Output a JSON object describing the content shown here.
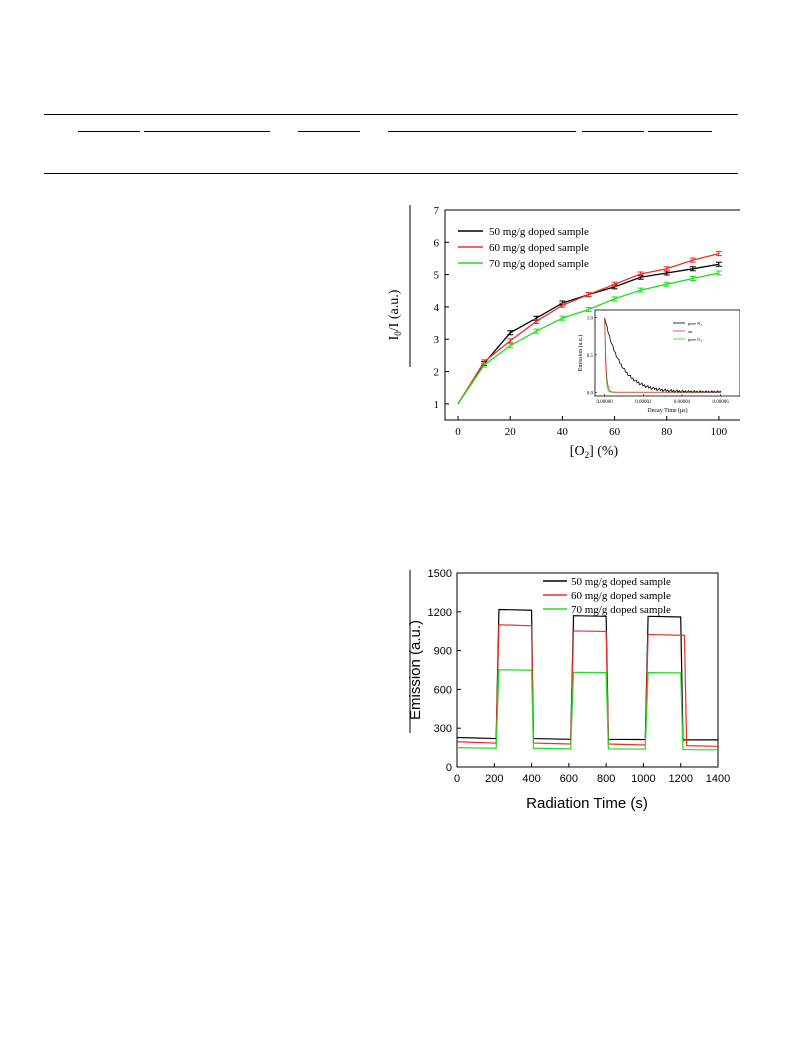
{
  "chart_data": [
    {
      "type": "line",
      "title": "",
      "xlabel": "[O₂] (%)",
      "ylabel": "I₀/I (a.u.)",
      "xlim": [
        -5,
        110
      ],
      "ylim": [
        0.5,
        7
      ],
      "xticks": [
        0,
        20,
        40,
        60,
        80,
        100
      ],
      "yticks": [
        1,
        2,
        3,
        4,
        5,
        6,
        7
      ],
      "legend_position": "top-left",
      "error_bars": true,
      "x": [
        0,
        10,
        20,
        30,
        40,
        50,
        60,
        70,
        80,
        90,
        100
      ],
      "series": [
        {
          "name": "50 mg/g doped sample",
          "color": "#000000",
          "values": [
            1.0,
            2.25,
            3.2,
            3.65,
            4.12,
            4.38,
            4.62,
            4.92,
            5.05,
            5.18,
            5.32
          ]
        },
        {
          "name": "60 mg/g doped sample",
          "color": "#e8302a",
          "values": [
            1.0,
            2.3,
            2.95,
            3.55,
            4.05,
            4.38,
            4.7,
            5.02,
            5.18,
            5.45,
            5.65
          ]
        },
        {
          "name": "70 mg/g doped sample",
          "color": "#22dd22",
          "values": [
            1.0,
            2.2,
            2.8,
            3.25,
            3.65,
            3.92,
            4.25,
            4.52,
            4.7,
            4.88,
            5.05
          ]
        }
      ],
      "inset": {
        "type": "line",
        "xlabel": "Decay Time (μs)",
        "ylabel": "Emission (a.u.)",
        "xlim": [
          -5e-06,
          7e-05
        ],
        "ylim": [
          -0.05,
          1.1
        ],
        "xticks": [
          "0.00000",
          "0.00002",
          "0.00004",
          "0.00006"
        ],
        "xtick_values": [
          0,
          2e-05,
          4e-05,
          6e-05
        ],
        "yticks": [
          "0.0",
          "0.5",
          "1.0"
        ],
        "ytick_values": [
          0,
          0.5,
          1.0
        ],
        "legend_position": "top-right",
        "series": [
          {
            "name": "pure N₂",
            "color": "#000000",
            "tau": 8.5e-06
          },
          {
            "name": "air",
            "color": "#e8302a",
            "tau": 7e-07
          },
          {
            "name": "pure O₂",
            "color": "#22dd22",
            "tau": 5e-07
          }
        ]
      }
    },
    {
      "type": "line",
      "title": "",
      "xlabel": "Radiation Time (s)",
      "ylabel": "Emission (a.u.)",
      "xlim": [
        0,
        1400
      ],
      "ylim": [
        0,
        1500
      ],
      "xticks": [
        0,
        200,
        400,
        600,
        800,
        1000,
        1200,
        1400
      ],
      "yticks": [
        0,
        300,
        600,
        900,
        1200,
        1500
      ],
      "legend_position": "top-right",
      "series": [
        {
          "name": "50 mg/g doped sample",
          "color": "#000000",
          "points": [
            [
              0,
              228
            ],
            [
              210,
              220
            ],
            [
              225,
              1218
            ],
            [
              400,
              1212
            ],
            [
              410,
              220
            ],
            [
              610,
              214
            ],
            [
              625,
              1170
            ],
            [
              800,
              1165
            ],
            [
              812,
              214
            ],
            [
              1010,
              212
            ],
            [
              1025,
              1165
            ],
            [
              1200,
              1160
            ],
            [
              1212,
              210
            ],
            [
              1400,
              210
            ]
          ]
        },
        {
          "name": "60 mg/g doped sample",
          "color": "#e8302a",
          "points": [
            [
              0,
              195
            ],
            [
              210,
              185
            ],
            [
              225,
              1100
            ],
            [
              400,
              1092
            ],
            [
              410,
              185
            ],
            [
              610,
              178
            ],
            [
              625,
              1052
            ],
            [
              800,
              1048
            ],
            [
              812,
              178
            ],
            [
              1010,
              170
            ],
            [
              1025,
              1025
            ],
            [
              1220,
              1018
            ],
            [
              1232,
              165
            ],
            [
              1400,
              160
            ]
          ]
        },
        {
          "name": "70 mg/g doped sample",
          "color": "#22dd22",
          "points": [
            [
              0,
              150
            ],
            [
              210,
              145
            ],
            [
              225,
              752
            ],
            [
              400,
              748
            ],
            [
              410,
              145
            ],
            [
              610,
              140
            ],
            [
              625,
              732
            ],
            [
              800,
              730
            ],
            [
              812,
              140
            ],
            [
              1010,
              138
            ],
            [
              1025,
              730
            ],
            [
              1200,
              728
            ],
            [
              1212,
              135
            ],
            [
              1400,
              132
            ]
          ]
        }
      ]
    }
  ]
}
